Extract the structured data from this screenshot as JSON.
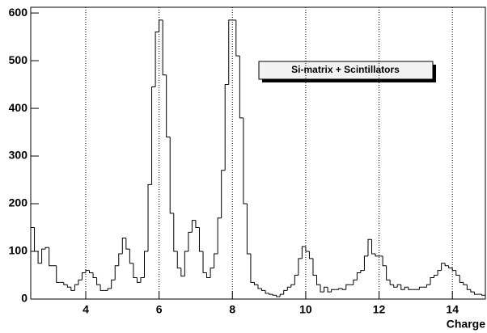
{
  "chart_data": {
    "type": "histogram",
    "title": "Si-matrix + Scintillators",
    "x_label": "Charge",
    "bins": [
      2.5,
      2.6,
      2.7,
      2.8,
      2.9,
      3.0,
      3.1,
      3.2,
      3.3,
      3.4,
      3.5,
      3.6,
      3.7,
      3.8,
      3.9,
      4.0,
      4.1,
      4.2,
      4.3,
      4.4,
      4.5,
      4.6,
      4.7,
      4.8,
      4.9,
      5.0,
      5.1,
      5.2,
      5.3,
      5.4,
      5.5,
      5.6,
      5.7,
      5.8,
      5.9,
      6.0,
      6.1,
      6.2,
      6.3,
      6.4,
      6.5,
      6.6,
      6.7,
      6.8,
      6.9,
      7.0,
      7.1,
      7.2,
      7.3,
      7.4,
      7.5,
      7.6,
      7.7,
      7.8,
      7.9,
      8.0,
      8.1,
      8.2,
      8.3,
      8.4,
      8.5,
      8.6,
      8.7,
      8.8,
      8.9,
      9.0,
      9.1,
      9.2,
      9.3,
      9.4,
      9.5,
      9.6,
      9.7,
      9.8,
      9.9,
      10.0,
      10.1,
      10.2,
      10.3,
      10.4,
      10.5,
      10.6,
      10.7,
      10.8,
      10.9,
      11.0,
      11.1,
      11.2,
      11.3,
      11.4,
      11.5,
      11.6,
      11.7,
      11.8,
      11.9,
      12.0,
      12.1,
      12.2,
      12.3,
      12.4,
      12.5,
      12.6,
      12.7,
      12.8,
      12.9,
      13.0,
      13.1,
      13.2,
      13.3,
      13.4,
      13.5,
      13.6,
      13.7,
      13.8,
      13.9,
      14.0,
      14.1,
      14.2,
      14.3,
      14.4,
      14.5,
      14.6,
      14.7,
      14.8,
      14.9
    ],
    "values": [
      150,
      100,
      75,
      105,
      108,
      70,
      70,
      35,
      35,
      30,
      25,
      18,
      30,
      40,
      55,
      60,
      55,
      45,
      30,
      18,
      18,
      22,
      40,
      70,
      95,
      128,
      105,
      75,
      45,
      35,
      45,
      100,
      240,
      445,
      560,
      585,
      470,
      340,
      180,
      100,
      65,
      48,
      100,
      140,
      165,
      150,
      100,
      55,
      45,
      65,
      95,
      170,
      270,
      450,
      585,
      585,
      510,
      380,
      200,
      95,
      35,
      30,
      22,
      18,
      12,
      10,
      8,
      5,
      10,
      18,
      25,
      30,
      50,
      85,
      110,
      100,
      85,
      50,
      30,
      15,
      25,
      15,
      20,
      20,
      22,
      20,
      30,
      30,
      40,
      55,
      60,
      90,
      125,
      95,
      90,
      90,
      70,
      40,
      30,
      25,
      30,
      20,
      25,
      20,
      20,
      20,
      25,
      25,
      30,
      45,
      50,
      60,
      75,
      70,
      65,
      60,
      50,
      35,
      30,
      20,
      15,
      10,
      10,
      8
    ],
    "color": "#000000",
    "xlim": [
      2.5,
      14.9
    ],
    "xticks": [
      4,
      6,
      8,
      10,
      12,
      14
    ],
    "ylim": [
      0,
      612
    ],
    "yticks": [
      0,
      100,
      200,
      300,
      400,
      500,
      600
    ],
    "grid": true
  }
}
